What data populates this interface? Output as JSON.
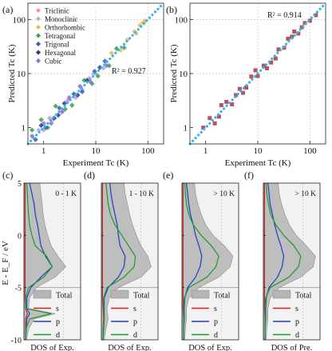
{
  "chart_data": [
    {
      "panel": "(a)",
      "type": "scatter",
      "xlabel": "Experiment Tc (K)",
      "ylabel": "Predicted Tc (K)",
      "xscale": "log",
      "yscale": "log",
      "xlim": [
        0.5,
        200
      ],
      "ylim": [
        0.5,
        200
      ],
      "x_ticks": [
        1,
        10,
        100
      ],
      "y_ticks": [
        1,
        10,
        100
      ],
      "x_ticklabels": [
        "1",
        "10",
        "100"
      ],
      "y_ticklabels": [
        "1",
        "10",
        "100"
      ],
      "grid": false,
      "annotation": "R² = 0.927",
      "legend_position": "top-left",
      "series": [
        {
          "name": "Triclinic",
          "color": "#e98fc8",
          "points": [
            [
              1.3,
              1.5
            ],
            [
              2.2,
              1.9
            ],
            [
              4.1,
              3.6
            ],
            [
              7.5,
              8.2
            ],
            [
              1.0,
              0.9
            ],
            [
              3.0,
              3.3
            ]
          ]
        },
        {
          "name": "Monoclinic",
          "color": "#bfa3e0",
          "points": [
            [
              1.5,
              1.4
            ],
            [
              2.8,
              3.1
            ],
            [
              5.5,
              5.0
            ],
            [
              9.0,
              9.8
            ],
            [
              0.8,
              0.9
            ],
            [
              14.0,
              12.5
            ]
          ]
        },
        {
          "name": "Orthorhombic",
          "color": "#f4b55a",
          "points": [
            [
              40,
              42
            ],
            [
              60,
              55
            ],
            [
              80,
              88
            ],
            [
              90,
              95
            ],
            [
              55,
              60
            ],
            [
              70,
              78
            ],
            [
              20,
              24
            ],
            [
              30,
              27
            ]
          ]
        },
        {
          "name": "Tetragonal",
          "color": "#3aa04a",
          "points": [
            [
              0.6,
              0.9
            ],
            [
              0.9,
              1.4
            ],
            [
              1.7,
              2.5
            ],
            [
              3.5,
              2.6
            ],
            [
              6.0,
              7.5
            ],
            [
              11,
              9
            ],
            [
              18,
              14
            ],
            [
              25,
              29
            ],
            [
              35,
              30
            ],
            [
              1.2,
              1.0
            ],
            [
              2.6,
              2.2
            ],
            [
              8.5,
              6.5
            ]
          ]
        },
        {
          "name": "Trigonal",
          "color": "#2f5faf",
          "points": [
            [
              1.1,
              1.0
            ],
            [
              2.0,
              2.3
            ],
            [
              3.8,
              4.2
            ],
            [
              5.5,
              4.6
            ],
            [
              9.5,
              11.0
            ],
            [
              15,
              17
            ],
            [
              0.7,
              0.6
            ]
          ]
        },
        {
          "name": "Hexagonal",
          "color": "#283a8c",
          "points": [
            [
              0.9,
              1.1
            ],
            [
              1.6,
              1.5
            ],
            [
              2.5,
              2.8
            ],
            [
              4.5,
              4.0
            ],
            [
              6.8,
              7.5
            ],
            [
              12,
              13
            ],
            [
              1.9,
              1.7
            ]
          ]
        },
        {
          "name": "Cubic",
          "color": "#8a6cd8",
          "points": [
            [
              0.6,
              0.7
            ],
            [
              1.0,
              1.2
            ],
            [
              2.3,
              2.0
            ],
            [
              3.1,
              3.6
            ],
            [
              5.0,
              5.8
            ],
            [
              8.0,
              7.0
            ],
            [
              16,
              14
            ],
            [
              1.4,
              1.2
            ]
          ]
        }
      ]
    },
    {
      "panel": "(b)",
      "type": "scatter",
      "xlabel": "Experiment Tc (K)",
      "ylabel": "Predicted Tc (K)",
      "xscale": "log",
      "yscale": "log",
      "xlim": [
        0.5,
        200
      ],
      "ylim": [
        0.5,
        200
      ],
      "x_ticks": [
        1,
        10,
        100
      ],
      "y_ticks": [
        1,
        10,
        100
      ],
      "x_ticklabels": [
        "1",
        "10",
        "100"
      ],
      "y_ticklabels": [
        "1",
        "10",
        "100"
      ],
      "grid": false,
      "annotation": "R² = 0.914",
      "series": [
        {
          "name": "",
          "color": "#a52a2a",
          "points": [
            [
              0.9,
              1.0
            ],
            [
              1.2,
              1.5
            ],
            [
              1.8,
              1.6
            ],
            [
              2.5,
              3.0
            ],
            [
              3.2,
              2.7
            ],
            [
              4.5,
              5.2
            ],
            [
              6.0,
              5.5
            ],
            [
              7.5,
              8.8
            ],
            [
              10,
              9.0
            ],
            [
              13,
              14
            ],
            [
              18,
              16
            ],
            [
              25,
              28
            ],
            [
              32,
              30
            ],
            [
              45,
              48
            ],
            [
              60,
              55
            ],
            [
              80,
              86
            ],
            [
              100,
              95
            ],
            [
              130,
              120
            ],
            [
              2.0,
              2.6
            ],
            [
              5.2,
              4.4
            ],
            [
              9.0,
              11.5
            ],
            [
              22,
              19
            ],
            [
              38,
              44
            ],
            [
              70,
              72
            ],
            [
              1.5,
              1.2
            ],
            [
              3.8,
              4.0
            ],
            [
              15,
              12.5
            ],
            [
              50,
              60
            ]
          ]
        }
      ]
    },
    {
      "panel": "(c)",
      "type": "area",
      "title": "0 - 1 K",
      "xlabel": "DOS of Exp.",
      "ylabel": "E - E_F / eV",
      "ylim": [
        -10,
        5
      ],
      "y_ticks": [
        5,
        0,
        -5,
        -10
      ],
      "y_ticklabels": [
        "5",
        "0",
        "-5",
        "-10"
      ],
      "legend": [
        "Total",
        "s",
        "p",
        "d"
      ],
      "legend_position": "bottom-right",
      "E": [
        5,
        4,
        3,
        2,
        1,
        0,
        -1,
        -2,
        -3,
        -4,
        -5,
        -6,
        -7,
        -7.5,
        -8,
        -9,
        -10
      ],
      "series": [
        {
          "name": "Total",
          "values": [
            0.28,
            0.3,
            0.32,
            0.34,
            0.37,
            0.42,
            0.48,
            0.6,
            0.74,
            0.55,
            0.22,
            0.1,
            0.08,
            0.55,
            0.18,
            0.08,
            0.05
          ]
        },
        {
          "name": "s",
          "values": [
            0.02,
            0.02,
            0.02,
            0.02,
            0.02,
            0.02,
            0.02,
            0.02,
            0.02,
            0.02,
            0.02,
            0.02,
            0.03,
            0.06,
            0.03,
            0.03,
            0.03
          ]
        },
        {
          "name": "p",
          "values": [
            0.1,
            0.14,
            0.18,
            0.2,
            0.24,
            0.27,
            0.3,
            0.38,
            0.5,
            0.3,
            0.12,
            0.05,
            0.05,
            0.1,
            0.05,
            0.04,
            0.03
          ]
        },
        {
          "name": "d",
          "values": [
            0.05,
            0.06,
            0.07,
            0.08,
            0.1,
            0.14,
            0.2,
            0.4,
            0.5,
            0.35,
            0.08,
            0.03,
            0.03,
            0.48,
            0.1,
            0.03,
            0.03
          ]
        }
      ]
    },
    {
      "panel": "(d)",
      "type": "area",
      "title": "1 - 10 K",
      "xlabel": "DOS of Exp.",
      "ylim": [
        -10,
        5
      ],
      "legend": [
        "Total",
        "s",
        "p",
        "d"
      ],
      "E": [
        5,
        4,
        3,
        2,
        1,
        0,
        -1,
        -2,
        -3,
        -4,
        -5,
        -6,
        -7,
        -8,
        -9,
        -10
      ],
      "series": [
        {
          "name": "Total",
          "values": [
            0.4,
            0.42,
            0.46,
            0.5,
            0.55,
            0.62,
            0.7,
            0.82,
            0.88,
            0.7,
            0.3,
            0.14,
            0.1,
            0.12,
            0.08,
            0.05
          ]
        },
        {
          "name": "s",
          "values": [
            0.02,
            0.02,
            0.02,
            0.02,
            0.02,
            0.02,
            0.02,
            0.02,
            0.02,
            0.02,
            0.02,
            0.02,
            0.03,
            0.04,
            0.03,
            0.03
          ]
        },
        {
          "name": "p",
          "values": [
            0.15,
            0.17,
            0.2,
            0.24,
            0.28,
            0.3,
            0.33,
            0.42,
            0.4,
            0.3,
            0.12,
            0.05,
            0.05,
            0.05,
            0.04,
            0.03
          ]
        },
        {
          "name": "d",
          "values": [
            0.08,
            0.1,
            0.12,
            0.16,
            0.24,
            0.36,
            0.48,
            0.6,
            0.58,
            0.4,
            0.1,
            0.04,
            0.04,
            0.05,
            0.03,
            0.03
          ]
        }
      ]
    },
    {
      "panel": "(e)",
      "type": "area",
      "title": "> 10 K",
      "xlabel": "DOS of Exp.",
      "ylim": [
        -10,
        5
      ],
      "legend": [
        "Total",
        "s",
        "p",
        "d"
      ],
      "E": [
        5,
        4,
        3,
        2,
        1,
        0,
        -1,
        -2,
        -3,
        -4,
        -5,
        -6,
        -7,
        -8,
        -9,
        -10
      ],
      "series": [
        {
          "name": "Total",
          "values": [
            0.22,
            0.24,
            0.28,
            0.34,
            0.42,
            0.55,
            0.75,
            0.9,
            0.85,
            0.65,
            0.3,
            0.12,
            0.08,
            0.08,
            0.06,
            0.05
          ]
        },
        {
          "name": "s",
          "values": [
            0.02,
            0.02,
            0.02,
            0.02,
            0.02,
            0.02,
            0.02,
            0.02,
            0.02,
            0.02,
            0.02,
            0.02,
            0.02,
            0.03,
            0.03,
            0.03
          ]
        },
        {
          "name": "p",
          "values": [
            0.08,
            0.1,
            0.12,
            0.15,
            0.2,
            0.24,
            0.3,
            0.35,
            0.32,
            0.24,
            0.1,
            0.05,
            0.04,
            0.04,
            0.03,
            0.03
          ]
        },
        {
          "name": "d",
          "values": [
            0.05,
            0.06,
            0.08,
            0.12,
            0.2,
            0.34,
            0.52,
            0.65,
            0.6,
            0.44,
            0.12,
            0.04,
            0.03,
            0.03,
            0.03,
            0.03
          ]
        }
      ]
    },
    {
      "panel": "(f)",
      "type": "area",
      "title": "> 10 K",
      "xlabel": "DOS of Pre.",
      "ylim": [
        -10,
        5
      ],
      "legend": [
        "Total",
        "s",
        "p",
        "d"
      ],
      "E": [
        5,
        4,
        3,
        2,
        1,
        0,
        -1,
        -2,
        -3,
        -4,
        -5,
        -6,
        -7,
        -8,
        -9,
        -10
      ],
      "series": [
        {
          "name": "Total",
          "values": [
            0.26,
            0.28,
            0.32,
            0.38,
            0.46,
            0.58,
            0.76,
            0.92,
            0.88,
            0.66,
            0.28,
            0.12,
            0.08,
            0.08,
            0.06,
            0.05
          ]
        },
        {
          "name": "s",
          "values": [
            0.02,
            0.02,
            0.02,
            0.02,
            0.02,
            0.02,
            0.02,
            0.02,
            0.02,
            0.02,
            0.02,
            0.02,
            0.02,
            0.03,
            0.03,
            0.03
          ]
        },
        {
          "name": "p",
          "values": [
            0.08,
            0.1,
            0.12,
            0.16,
            0.2,
            0.25,
            0.31,
            0.36,
            0.33,
            0.25,
            0.1,
            0.05,
            0.04,
            0.04,
            0.03,
            0.03
          ]
        },
        {
          "name": "d",
          "values": [
            0.05,
            0.06,
            0.09,
            0.13,
            0.22,
            0.36,
            0.54,
            0.66,
            0.62,
            0.45,
            0.12,
            0.04,
            0.03,
            0.03,
            0.03,
            0.03
          ]
        }
      ]
    }
  ],
  "colors": {
    "fit_line": "#3bb3e8",
    "total_fill": "#b5b5b5",
    "s": "#d62020",
    "p": "#1f3fc4",
    "d": "#1a9a2a",
    "panel_bg": "#f2f2f2",
    "scatter_b": "#a52a2a"
  }
}
